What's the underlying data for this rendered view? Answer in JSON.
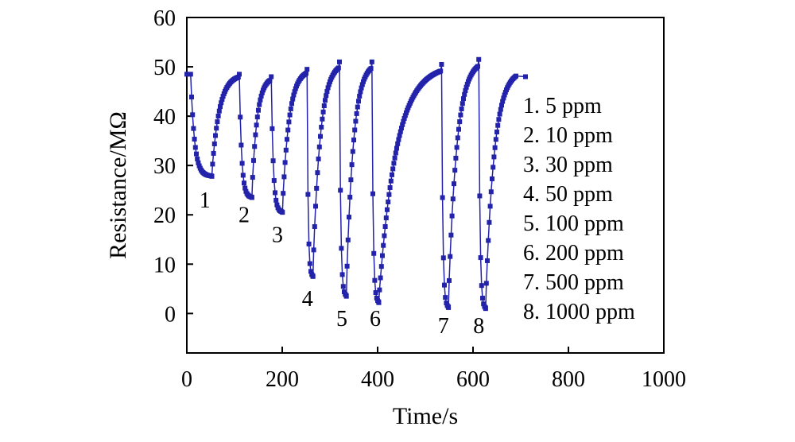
{
  "chart_data": {
    "type": "line",
    "title": "",
    "xlabel": "Time/s",
    "ylabel": "Resistance/MΩ",
    "xlim": [
      0,
      1000
    ],
    "ylim": [
      -8,
      60
    ],
    "xticks": [
      0,
      200,
      400,
      600,
      800,
      1000
    ],
    "yticks": [
      0,
      10,
      20,
      30,
      40,
      50,
      60
    ],
    "xtick_labels": [
      "0",
      "200",
      "400",
      "600",
      "800",
      "1000"
    ],
    "ytick_labels": [
      "0",
      "10",
      "20",
      "30",
      "40",
      "50",
      "60"
    ],
    "grid": false,
    "series_color": "#2222aa",
    "marker": "square",
    "cycles": [
      {
        "id": "1",
        "t_start": 8,
        "t_min": 52,
        "r_min": 27.8,
        "t_recover_end": 108,
        "r_recover": 48.5
      },
      {
        "id": "2",
        "t_start": 110,
        "t_min": 136,
        "r_min": 23.5,
        "t_recover_end": 175,
        "r_recover": 48.0
      },
      {
        "id": "3",
        "t_start": 177,
        "t_min": 200,
        "r_min": 20.5,
        "t_recover_end": 250,
        "r_recover": 49.5
      },
      {
        "id": "4",
        "t_start": 252,
        "t_min": 264,
        "r_min": 7.5,
        "t_recover_end": 318,
        "r_recover": 51.0
      },
      {
        "id": "5",
        "t_start": 320,
        "t_min": 334,
        "r_min": 3.5,
        "t_recover_end": 386,
        "r_recover": 51.0
      },
      {
        "id": "6",
        "t_start": 388,
        "t_min": 402,
        "r_min": 2.2,
        "t_recover_end": 532,
        "r_recover": 50.5
      },
      {
        "id": "7",
        "t_start": 534,
        "t_min": 548,
        "r_min": 1.2,
        "t_recover_end": 610,
        "r_recover": 51.5
      },
      {
        "id": "8",
        "t_start": 612,
        "t_min": 626,
        "r_min": 1.0,
        "t_recover_end": 690,
        "r_recover": 49.5
      }
    ],
    "initial": {
      "t": 0,
      "r": 48.5
    },
    "final": {
      "t": 710,
      "r": 48.0
    },
    "cycle_labels": [
      {
        "text": "1",
        "t": 38,
        "r": 21.5
      },
      {
        "text": "2",
        "t": 120,
        "r": 18.5
      },
      {
        "text": "3",
        "t": 190,
        "r": 14.5
      },
      {
        "text": "4",
        "t": 253,
        "r": 1.5
      },
      {
        "text": "5",
        "t": 325,
        "r": -2.5
      },
      {
        "text": "6",
        "t": 395,
        "r": -2.5
      },
      {
        "text": "7",
        "t": 538,
        "r": -4.0
      },
      {
        "text": "8",
        "t": 612,
        "r": -4.0
      }
    ],
    "legend_position": "right",
    "legend": [
      "1. 5 ppm",
      "2. 10 ppm",
      "3. 30 ppm",
      "4. 50 ppm",
      "5. 100 ppm",
      "6. 200 ppm",
      "7. 500 ppm",
      "8. 1000 ppm"
    ]
  }
}
